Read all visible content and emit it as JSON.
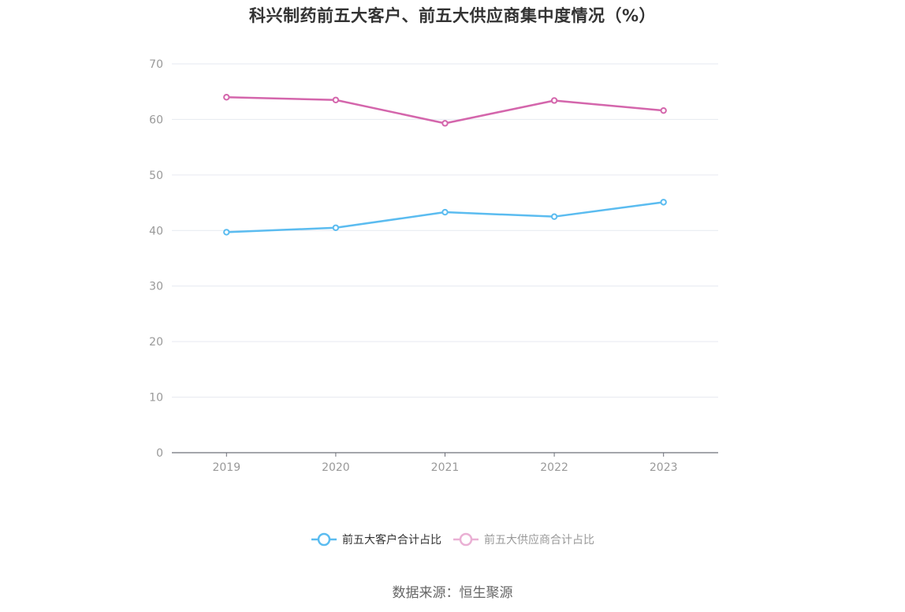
{
  "title": "科兴制药前五大客户、前五大供应商集中度情况（%）",
  "legend": {
    "series_a_label": "前五大客户合计占比",
    "series_b_label": "前五大供应商合计占比"
  },
  "source": "数据来源：恒生聚源",
  "colors": {
    "series_a": "#5bbcf0",
    "series_b": "#d466ac",
    "series_b_legend": "#eab0d4",
    "grid": "#e6e9f0",
    "axis": "#6e7079"
  },
  "chart_data": {
    "type": "line",
    "title": "科兴制药前五大客户、前五大供应商集中度情况（%）",
    "xlabel": "",
    "ylabel": "",
    "categories": [
      "2019",
      "2020",
      "2021",
      "2022",
      "2023"
    ],
    "series": [
      {
        "name": "前五大客户合计占比",
        "values": [
          39.7,
          40.5,
          43.3,
          42.5,
          45.1
        ]
      },
      {
        "name": "前五大供应商合计占比",
        "values": [
          64.0,
          63.5,
          59.3,
          63.4,
          61.6
        ]
      }
    ],
    "yticks": [
      0,
      10,
      20,
      30,
      40,
      50,
      60,
      70
    ],
    "ylim": [
      0,
      70
    ],
    "grid": true,
    "legend_position": "bottom"
  }
}
